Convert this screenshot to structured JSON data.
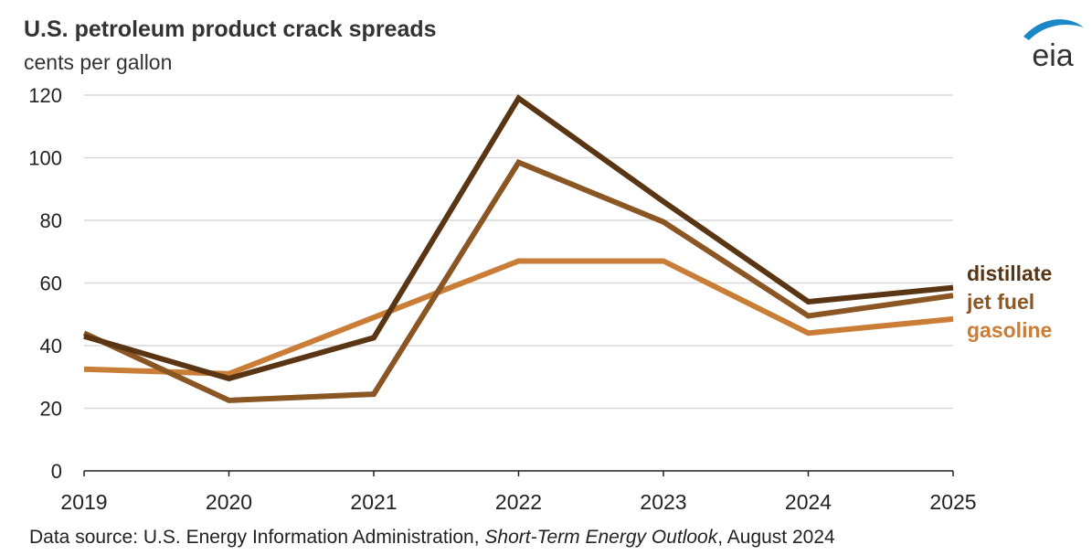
{
  "header": {
    "title": "U.S. petroleum product crack spreads",
    "subtitle": "cents per gallon"
  },
  "logo": {
    "text": "eia",
    "icon": "eia-logo-icon"
  },
  "footer": {
    "prefix": "Data source: U.S. Energy Information Administration, ",
    "publication": "Short-Term Energy Outlook",
    "suffix": ", August 2024"
  },
  "chart_data": {
    "type": "line",
    "title": "U.S. petroleum product crack spreads",
    "ylabel": "cents per gallon",
    "xlabel": "",
    "x": [
      "2019",
      "2020",
      "2021",
      "2022",
      "2023",
      "2024",
      "2025"
    ],
    "ylim": [
      0,
      120
    ],
    "yticks": [
      "0",
      "20",
      "40",
      "60",
      "80",
      "100",
      "120"
    ],
    "grid": "horizontal",
    "legend": "right, inline at line ends",
    "series": [
      {
        "name": "distillate",
        "color": "#5a3514",
        "values": [
          43,
          29.5,
          42.5,
          119,
          86,
          54,
          58.5
        ]
      },
      {
        "name": "jet fuel",
        "color": "#8a5623",
        "values": [
          44,
          22.5,
          24.5,
          98.5,
          79.5,
          49.5,
          56
        ]
      },
      {
        "name": "gasoline",
        "color": "#c97d36",
        "values": [
          32.5,
          31,
          49,
          67,
          67,
          44,
          48.5
        ]
      }
    ]
  }
}
